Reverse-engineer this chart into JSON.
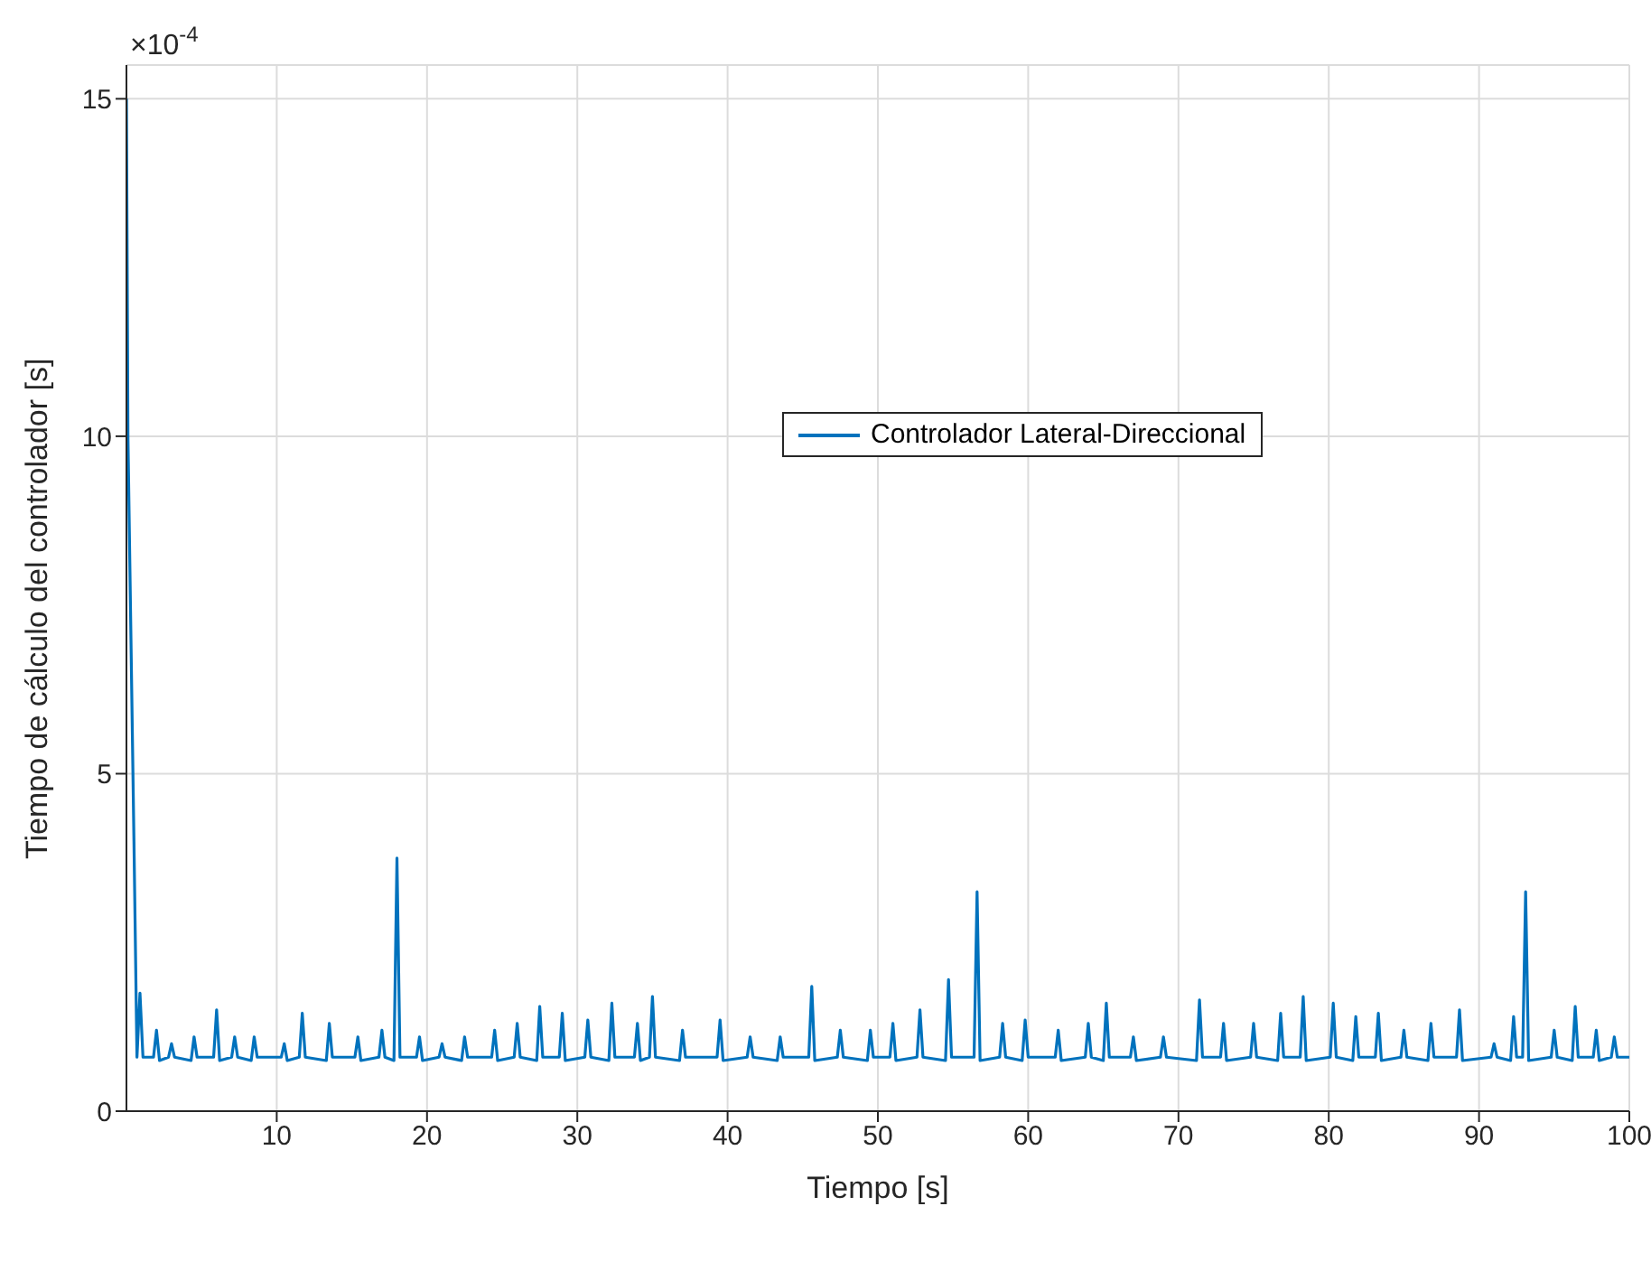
{
  "chart_data": {
    "type": "line",
    "xlabel": "Tiempo [s]",
    "ylabel": "Tiempo de cálculo del controlador [s]",
    "annotations": [
      "×10$^{-4}$"
    ],
    "xlim": [
      0,
      100
    ],
    "xticks": [
      10,
      20,
      30,
      40,
      50,
      60,
      70,
      80,
      90,
      100
    ],
    "ylim": [
      0,
      15.5
    ],
    "yticks": [
      0,
      5,
      10,
      15
    ],
    "grid": true,
    "legend": "top",
    "line_style": "solid",
    "marker": "none",
    "series": [
      {
        "name": "Controlador Lateral-Direccional",
        "color": "#0072bd",
        "x": [
          0,
          0.1,
          0.3,
          0.5,
          0.7,
          0.9,
          1.1,
          1.8,
          2.0,
          2.2,
          2.8,
          3.0,
          3.2,
          4.3,
          4.5,
          4.7,
          5.8,
          6.0,
          6.2,
          7.0,
          7.2,
          7.4,
          8.3,
          8.5,
          8.7,
          10.3,
          10.5,
          10.7,
          11.5,
          11.7,
          11.9,
          13.3,
          13.5,
          13.7,
          15.2,
          15.4,
          15.6,
          16.8,
          17.0,
          17.2,
          17.8,
          18.0,
          18.2,
          19.3,
          19.5,
          19.7,
          20.8,
          21.0,
          21.2,
          22.3,
          22.5,
          22.7,
          24.3,
          24.5,
          24.7,
          25.8,
          26.0,
          26.2,
          27.3,
          27.5,
          27.7,
          28.8,
          29.0,
          29.2,
          30.5,
          30.7,
          30.9,
          32.1,
          32.3,
          32.5,
          33.8,
          34.0,
          34.2,
          34.8,
          35.0,
          35.2,
          36.8,
          37.0,
          37.2,
          39.3,
          39.5,
          39.7,
          41.3,
          41.5,
          41.7,
          43.3,
          43.5,
          43.7,
          45.4,
          45.6,
          45.8,
          47.3,
          47.5,
          47.7,
          49.3,
          49.5,
          49.7,
          50.8,
          51.0,
          51.2,
          52.6,
          52.8,
          53.0,
          54.5,
          54.7,
          54.9,
          56.4,
          56.6,
          56.8,
          58.1,
          58.3,
          58.5,
          59.6,
          59.8,
          60.0,
          61.8,
          62.0,
          62.2,
          63.8,
          64.0,
          64.2,
          65.0,
          65.2,
          65.4,
          66.8,
          67.0,
          67.2,
          68.8,
          69.0,
          69.2,
          71.2,
          71.4,
          71.6,
          72.8,
          73.0,
          73.2,
          74.8,
          75.0,
          75.2,
          76.6,
          76.8,
          77.0,
          78.1,
          78.3,
          78.5,
          80.1,
          80.3,
          80.5,
          81.6,
          81.8,
          82.0,
          83.1,
          83.3,
          83.5,
          84.8,
          85.0,
          85.2,
          86.6,
          86.8,
          87.0,
          88.5,
          88.7,
          88.9,
          90.8,
          91.0,
          91.2,
          92.1,
          92.3,
          92.5,
          92.9,
          93.1,
          93.3,
          94.8,
          95.0,
          95.2,
          96.2,
          96.4,
          96.6,
          97.6,
          97.8,
          98.0,
          98.8,
          99.0,
          99.2,
          100
        ],
        "values": [
          15,
          10,
          7,
          4,
          0.8,
          1.75,
          0.8,
          0.8,
          1.2,
          0.75,
          0.8,
          1.0,
          0.8,
          0.75,
          1.1,
          0.8,
          0.8,
          1.5,
          0.75,
          0.8,
          1.1,
          0.8,
          0.75,
          1.1,
          0.8,
          0.8,
          1.0,
          0.75,
          0.8,
          1.45,
          0.8,
          0.75,
          1.3,
          0.8,
          0.8,
          1.1,
          0.75,
          0.8,
          1.2,
          0.8,
          0.75,
          3.75,
          0.8,
          0.8,
          1.1,
          0.75,
          0.8,
          1.0,
          0.8,
          0.75,
          1.1,
          0.8,
          0.8,
          1.2,
          0.75,
          0.8,
          1.3,
          0.8,
          0.75,
          1.55,
          0.8,
          0.8,
          1.45,
          0.75,
          0.8,
          1.35,
          0.8,
          0.75,
          1.6,
          0.8,
          0.8,
          1.3,
          0.75,
          0.8,
          1.7,
          0.8,
          0.75,
          1.2,
          0.8,
          0.8,
          1.35,
          0.75,
          0.8,
          1.1,
          0.8,
          0.75,
          1.1,
          0.8,
          0.8,
          1.85,
          0.75,
          0.8,
          1.2,
          0.8,
          0.75,
          1.2,
          0.8,
          0.8,
          1.3,
          0.75,
          0.8,
          1.5,
          0.8,
          0.75,
          1.95,
          0.8,
          0.8,
          3.25,
          0.75,
          0.8,
          1.3,
          0.8,
          0.75,
          1.35,
          0.8,
          0.8,
          1.2,
          0.75,
          0.8,
          1.3,
          0.8,
          0.75,
          1.6,
          0.8,
          0.8,
          1.1,
          0.75,
          0.8,
          1.1,
          0.8,
          0.75,
          1.65,
          0.8,
          0.8,
          1.3,
          0.75,
          0.8,
          1.3,
          0.8,
          0.75,
          1.45,
          0.8,
          0.8,
          1.7,
          0.75,
          0.8,
          1.6,
          0.8,
          0.75,
          1.4,
          0.8,
          0.8,
          1.45,
          0.75,
          0.8,
          1.2,
          0.8,
          0.75,
          1.3,
          0.8,
          0.8,
          1.5,
          0.75,
          0.8,
          1.0,
          0.8,
          0.75,
          1.4,
          0.8,
          0.8,
          3.25,
          0.75,
          0.8,
          1.2,
          0.8,
          0.75,
          1.55,
          0.8,
          0.8,
          1.2,
          0.75,
          0.8,
          1.1,
          0.8,
          0.8
        ]
      }
    ]
  }
}
